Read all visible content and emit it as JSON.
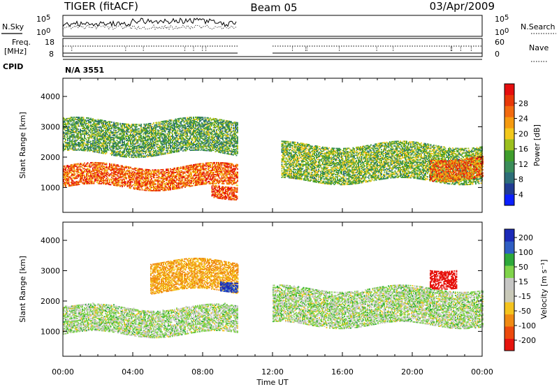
{
  "header": {
    "station": "TIGER (fitACF)",
    "beam": "Beam 05",
    "date": "03/Apr/2009"
  },
  "strip_labels": {
    "nsky": "N.Sky",
    "nsearch": "N.Search",
    "freq_line1": "Freq.",
    "freq_line2": "[MHz]",
    "nave": "Nave",
    "cpid": "CPID",
    "cpid_value": "N/A 3551"
  },
  "noise_axis": {
    "low_base": "10",
    "low_exp": "0",
    "high_base": "10",
    "high_exp": "5"
  },
  "freq_axis": {
    "left_ticks": [
      "18",
      "8"
    ],
    "right_ticks": [
      "60",
      "0"
    ]
  },
  "time_axis": {
    "label": "Time UT",
    "ticks": [
      "00:00",
      "04:00",
      "08:00",
      "12:00",
      "16:00",
      "20:00",
      "00:00"
    ]
  },
  "panels": {
    "power": {
      "ylabel": "Slant Range [km]",
      "cbar_label": "Power [dB]"
    },
    "velocity": {
      "ylabel": "Slant Range [km]",
      "cbar_label": "Velocity [m s⁻¹]"
    }
  },
  "colors": {
    "power_scale": [
      "#0b1fff",
      "#213c93",
      "#2d6d78",
      "#3b8d5a",
      "#3f9d2c",
      "#9bbf1d",
      "#f2c81c",
      "#f59a10",
      "#f26a0f",
      "#e83808",
      "#e50e0e"
    ],
    "velocity_scale": [
      "#1b2ab8",
      "#2f5ec3",
      "#2da83a",
      "#7fd34a",
      "#c6c6c4",
      "#c9c9b8",
      "#f4c31e",
      "#f08a13",
      "#ec4a0d",
      "#e6140e"
    ]
  },
  "chart_data": [
    {
      "type": "heatmap",
      "title": "Power",
      "xlabel": "Time UT",
      "ylabel": "Slant Range [km]",
      "x_range_hours": [
        0,
        24
      ],
      "ylim_km": [
        180,
        4600
      ],
      "y_ticks": [
        1000,
        2000,
        3000,
        4000
      ],
      "data_gap_hours": [
        10,
        12
      ],
      "colorbar": {
        "label": "Power [dB]",
        "range": [
          0,
          32
        ],
        "ticks": [
          4,
          8,
          12,
          16,
          20,
          24,
          28
        ]
      },
      "echo_bands": [
        {
          "t": [
            0,
            10
          ],
          "range_km": [
            1000,
            1700
          ],
          "power_db": 26
        },
        {
          "t": [
            0,
            10
          ],
          "range_km": [
            2100,
            3200
          ],
          "power_db": 12
        },
        {
          "t": [
            8.5,
            10
          ],
          "range_km": [
            700,
            1100
          ],
          "power_db": 28
        },
        {
          "t": [
            12.5,
            24
          ],
          "range_km": [
            1200,
            2400
          ],
          "power_db": 14
        },
        {
          "t": [
            21,
            24
          ],
          "range_km": [
            1300,
            2000
          ],
          "power_db": 26
        }
      ]
    },
    {
      "type": "heatmap",
      "title": "Velocity",
      "xlabel": "Time UT",
      "ylabel": "Slant Range [km]",
      "x_range_hours": [
        0,
        24
      ],
      "ylim_km": [
        180,
        4600
      ],
      "y_ticks": [
        1000,
        2000,
        3000,
        4000
      ],
      "data_gap_hours": [
        10,
        12
      ],
      "colorbar": {
        "label": "Velocity [m s⁻¹]",
        "ticks": [
          200,
          100,
          50,
          15,
          -15,
          -50,
          -100,
          -200
        ]
      },
      "echo_bands": [
        {
          "t": [
            0,
            10
          ],
          "range_km": [
            900,
            1800
          ],
          "velocity_ms": 0
        },
        {
          "t": [
            5,
            10
          ],
          "range_km": [
            2300,
            3300
          ],
          "velocity_ms": -80
        },
        {
          "t": [
            9,
            10
          ],
          "range_km": [
            2400,
            2700
          ],
          "velocity_ms": 150
        },
        {
          "t": [
            12,
            24
          ],
          "range_km": [
            1200,
            2400
          ],
          "velocity_ms": 0
        },
        {
          "t": [
            21,
            22.5
          ],
          "range_km": [
            2500,
            3100
          ],
          "velocity_ms": -220
        }
      ]
    }
  ]
}
